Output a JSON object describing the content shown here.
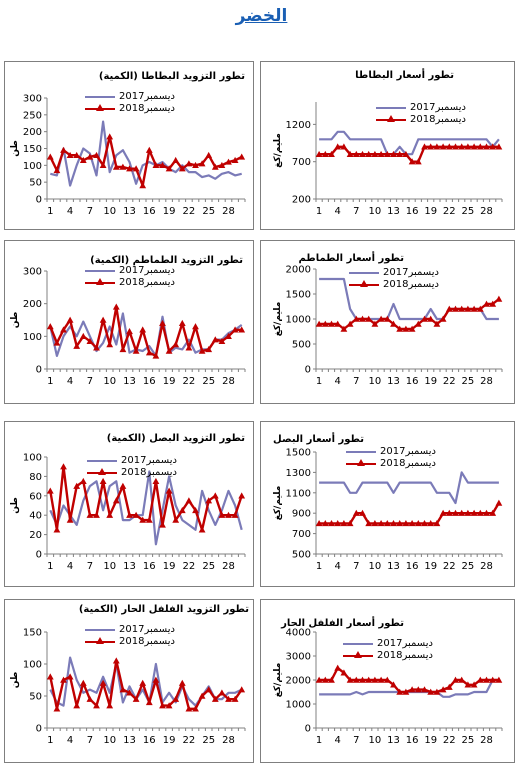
{
  "page": {
    "title": "الخضر"
  },
  "style": {
    "color_2017": "#7b7bb8",
    "color_2018": "#c00000"
  },
  "chart_data": [
    {
      "id": "potato-supply",
      "type": "line",
      "title": "تطور التزويد البطاطا (الكمية)",
      "ylabel": "طن",
      "ylim": [
        0,
        300
      ],
      "yticks": [
        0,
        50,
        100,
        150,
        200,
        250,
        300
      ],
      "x": [
        1,
        2,
        3,
        4,
        5,
        6,
        7,
        8,
        9,
        10,
        11,
        12,
        13,
        14,
        15,
        16,
        17,
        18,
        19,
        20,
        21,
        22,
        23,
        24,
        25,
        26,
        27,
        28,
        29,
        30
      ],
      "xticks": [
        1,
        4,
        7,
        10,
        13,
        16,
        19,
        22,
        25,
        28
      ],
      "series": [
        {
          "name": "ديسمبر2017",
          "values": [
            75,
            70,
            150,
            40,
            100,
            150,
            135,
            70,
            230,
            80,
            130,
            145,
            110,
            45,
            100,
            110,
            100,
            110,
            90,
            80,
            100,
            80,
            80,
            65,
            70,
            60,
            75,
            80,
            70,
            75
          ]
        },
        {
          "name": "ديسمبر2018",
          "values": [
            125,
            85,
            145,
            130,
            130,
            115,
            125,
            130,
            100,
            185,
            95,
            95,
            90,
            90,
            40,
            145,
            100,
            100,
            90,
            115,
            90,
            105,
            100,
            105,
            130,
            95,
            100,
            110,
            115,
            125
          ]
        }
      ]
    },
    {
      "id": "potato-price",
      "type": "line",
      "title": "تطور أسعار البطاطا",
      "ylabel": "مليم/كغ",
      "ylim": [
        200,
        1500
      ],
      "yticks": [
        200,
        700,
        1200
      ],
      "x": [
        1,
        2,
        3,
        4,
        5,
        6,
        7,
        8,
        9,
        10,
        11,
        12,
        13,
        14,
        15,
        16,
        17,
        18,
        19,
        20,
        21,
        22,
        23,
        24,
        25,
        26,
        27,
        28,
        29,
        30
      ],
      "xticks": [
        1,
        4,
        7,
        10,
        13,
        16,
        19,
        22,
        25,
        28
      ],
      "series": [
        {
          "name": "ديسمبر2017",
          "values": [
            1000,
            1000,
            1000,
            1100,
            1100,
            1000,
            1000,
            1000,
            1000,
            1000,
            1000,
            800,
            800,
            900,
            800,
            800,
            1000,
            1000,
            1000,
            1000,
            1000,
            1000,
            1000,
            1000,
            1000,
            1000,
            1000,
            1000,
            900,
            1000
          ]
        },
        {
          "name": "ديسمبر2018",
          "values": [
            800,
            800,
            800,
            900,
            900,
            800,
            800,
            800,
            800,
            800,
            800,
            800,
            800,
            800,
            800,
            700,
            700,
            900,
            900,
            900,
            900,
            900,
            900,
            900,
            900,
            900,
            900,
            900,
            900,
            900
          ]
        }
      ]
    },
    {
      "id": "tomato-supply",
      "type": "line",
      "title": "تطور التزويد الطماطم (الكمية)",
      "ylabel": "طن",
      "ylim": [
        0,
        300
      ],
      "yticks": [
        0,
        100,
        200,
        300
      ],
      "x": [
        1,
        2,
        3,
        4,
        5,
        6,
        7,
        8,
        9,
        10,
        11,
        12,
        13,
        14,
        15,
        16,
        17,
        18,
        19,
        20,
        21,
        22,
        23,
        24,
        25,
        26,
        27,
        28,
        29,
        30
      ],
      "xticks": [
        1,
        4,
        7,
        10,
        13,
        16,
        19,
        22,
        25,
        28
      ],
      "series": [
        {
          "name": "ديسمبر2017",
          "values": [
            130,
            40,
            100,
            130,
            100,
            145,
            100,
            55,
            80,
            130,
            75,
            170,
            50,
            60,
            55,
            70,
            40,
            160,
            50,
            65,
            60,
            90,
            50,
            60,
            60,
            90,
            90,
            110,
            120,
            135
          ]
        },
        {
          "name": "ديسمبر2018",
          "values": [
            130,
            80,
            120,
            150,
            70,
            100,
            85,
            65,
            150,
            75,
            190,
            60,
            115,
            55,
            120,
            50,
            40,
            140,
            55,
            75,
            140,
            65,
            130,
            55,
            60,
            90,
            85,
            100,
            120,
            120
          ]
        }
      ]
    },
    {
      "id": "tomato-price",
      "type": "line",
      "title": "تطور أسعار الطماطم",
      "ylabel": "مليم/كغ",
      "ylim": [
        0,
        2000
      ],
      "yticks": [
        0,
        500,
        1000,
        1500,
        2000
      ],
      "x": [
        1,
        2,
        3,
        4,
        5,
        6,
        7,
        8,
        9,
        10,
        11,
        12,
        13,
        14,
        15,
        16,
        17,
        18,
        19,
        20,
        21,
        22,
        23,
        24,
        25,
        26,
        27,
        28,
        29,
        30
      ],
      "xticks": [
        1,
        4,
        7,
        10,
        13,
        16,
        19,
        22,
        25,
        28
      ],
      "series": [
        {
          "name": "ديسمبر2017",
          "values": [
            1800,
            1800,
            1800,
            1800,
            1800,
            1200,
            1000,
            1000,
            1000,
            1000,
            1000,
            1000,
            1300,
            1000,
            1000,
            1000,
            1000,
            1000,
            1200,
            1000,
            1000,
            1200,
            1200,
            1200,
            1200,
            1200,
            1200,
            1000,
            1000,
            1000
          ]
        },
        {
          "name": "ديسمبر2018",
          "values": [
            900,
            900,
            900,
            900,
            800,
            900,
            1000,
            1000,
            1000,
            900,
            1000,
            1000,
            900,
            800,
            800,
            800,
            900,
            1000,
            1000,
            900,
            1000,
            1200,
            1200,
            1200,
            1200,
            1200,
            1200,
            1300,
            1300,
            1400
          ]
        }
      ]
    },
    {
      "id": "onion-supply",
      "type": "line",
      "title": "تطور التزويد البصل (الكمية)",
      "ylabel": "طن",
      "ylim": [
        0,
        100
      ],
      "yticks": [
        0,
        20,
        40,
        60,
        80,
        100
      ],
      "x": [
        1,
        2,
        3,
        4,
        5,
        6,
        7,
        8,
        9,
        10,
        11,
        12,
        13,
        14,
        15,
        16,
        17,
        18,
        19,
        20,
        21,
        22,
        23,
        24,
        25,
        26,
        27,
        28,
        29,
        30
      ],
      "xticks": [
        1,
        4,
        7,
        10,
        13,
        16,
        19,
        22,
        25,
        28
      ],
      "series": [
        {
          "name": "ديسمبر2017",
          "values": [
            45,
            30,
            50,
            40,
            30,
            55,
            70,
            75,
            45,
            70,
            75,
            35,
            35,
            40,
            40,
            85,
            10,
            45,
            80,
            50,
            35,
            30,
            25,
            65,
            45,
            30,
            45,
            65,
            50,
            25
          ]
        },
        {
          "name": "ديسمبر2018",
          "values": [
            65,
            25,
            90,
            35,
            70,
            75,
            40,
            40,
            75,
            40,
            55,
            70,
            40,
            40,
            35,
            35,
            75,
            30,
            65,
            35,
            45,
            55,
            45,
            25,
            55,
            60,
            40,
            40,
            40,
            60
          ]
        }
      ]
    },
    {
      "id": "onion-price",
      "type": "line",
      "title": "تطور أسعار البصل",
      "ylabel": "مليم/كغ",
      "ylim": [
        500,
        1500
      ],
      "yticks": [
        500,
        700,
        900,
        1100,
        1300,
        1500
      ],
      "x": [
        1,
        2,
        3,
        4,
        5,
        6,
        7,
        8,
        9,
        10,
        11,
        12,
        13,
        14,
        15,
        16,
        17,
        18,
        19,
        20,
        21,
        22,
        23,
        24,
        25,
        26,
        27,
        28,
        29,
        30
      ],
      "xticks": [
        1,
        4,
        7,
        10,
        13,
        16,
        19,
        22,
        25,
        28
      ],
      "series": [
        {
          "name": "ديسمبر2017",
          "values": [
            1200,
            1200,
            1200,
            1200,
            1200,
            1100,
            1100,
            1200,
            1200,
            1200,
            1200,
            1200,
            1100,
            1200,
            1200,
            1200,
            1200,
            1200,
            1200,
            1100,
            1100,
            1100,
            1000,
            1300,
            1200,
            1200,
            1200,
            1200,
            1200,
            1200
          ]
        },
        {
          "name": "ديسمبر2018",
          "values": [
            800,
            800,
            800,
            800,
            800,
            800,
            900,
            900,
            800,
            800,
            800,
            800,
            800,
            800,
            800,
            800,
            800,
            800,
            800,
            800,
            900,
            900,
            900,
            900,
            900,
            900,
            900,
            900,
            900,
            1000
          ]
        }
      ]
    },
    {
      "id": "pepper-supply",
      "type": "line",
      "title": "تطور التزويد الفلفل الحار (الكمية)",
      "ylabel": "طن",
      "ylim": [
        0,
        150
      ],
      "yticks": [
        0,
        50,
        100,
        150
      ],
      "x": [
        1,
        2,
        3,
        4,
        5,
        6,
        7,
        8,
        9,
        10,
        11,
        12,
        13,
        14,
        15,
        16,
        17,
        18,
        19,
        20,
        21,
        22,
        23,
        24,
        25,
        26,
        27,
        28,
        29,
        30
      ],
      "xticks": [
        1,
        4,
        7,
        10,
        13,
        16,
        19,
        22,
        25,
        28
      ],
      "series": [
        {
          "name": "ديسمبر2017",
          "values": [
            60,
            40,
            35,
            110,
            75,
            55,
            60,
            55,
            80,
            55,
            100,
            40,
            65,
            45,
            60,
            40,
            100,
            40,
            55,
            40,
            65,
            45,
            35,
            50,
            65,
            45,
            45,
            55,
            55,
            60
          ]
        },
        {
          "name": "ديسمبر2018",
          "values": [
            80,
            30,
            75,
            80,
            35,
            70,
            45,
            35,
            70,
            35,
            105,
            60,
            55,
            45,
            70,
            40,
            75,
            35,
            35,
            45,
            70,
            30,
            30,
            50,
            60,
            45,
            55,
            45,
            45,
            60
          ]
        }
      ]
    },
    {
      "id": "pepper-price",
      "type": "line",
      "title": "تطور أسعار الفلفل الحار",
      "ylabel": "مليم/كغ",
      "ylim": [
        0,
        4000
      ],
      "yticks": [
        0,
        1000,
        2000,
        3000,
        4000
      ],
      "x": [
        1,
        2,
        3,
        4,
        5,
        6,
        7,
        8,
        9,
        10,
        11,
        12,
        13,
        14,
        15,
        16,
        17,
        18,
        19,
        20,
        21,
        22,
        23,
        24,
        25,
        26,
        27,
        28,
        29,
        30
      ],
      "xticks": [
        1,
        4,
        7,
        10,
        13,
        16,
        19,
        22,
        25,
        28
      ],
      "series": [
        {
          "name": "ديسمبر2017",
          "values": [
            1400,
            1400,
            1400,
            1400,
            1400,
            1400,
            1500,
            1400,
            1500,
            1500,
            1500,
            1500,
            1500,
            1500,
            1500,
            1500,
            1500,
            1500,
            1500,
            1500,
            1300,
            1300,
            1400,
            1400,
            1400,
            1500,
            1500,
            1500,
            2000,
            2000
          ]
        },
        {
          "name": "ديسمبر2018",
          "values": [
            2000,
            2000,
            2000,
            2500,
            2300,
            2000,
            2000,
            2000,
            2000,
            2000,
            2000,
            2000,
            1800,
            1500,
            1500,
            1600,
            1600,
            1600,
            1500,
            1500,
            1600,
            1700,
            2000,
            2000,
            1800,
            1800,
            2000,
            2000,
            2000,
            2000
          ]
        }
      ]
    }
  ]
}
